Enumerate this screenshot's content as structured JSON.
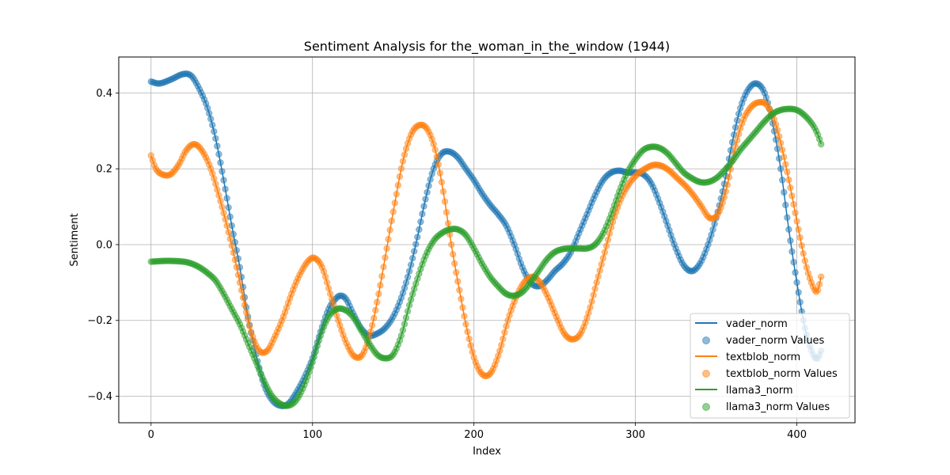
{
  "chart_data": {
    "type": "line",
    "title": "Sentiment Analysis for the_woman_in_the_window (1944)",
    "xlabel": "Index",
    "ylabel": "Sentiment",
    "xlim": [
      -20,
      436
    ],
    "ylim": [
      -0.47,
      0.495
    ],
    "xticks": [
      0,
      100,
      200,
      300,
      400
    ],
    "yticks": [
      -0.4,
      -0.2,
      0.0,
      0.2,
      0.4
    ],
    "ytick_labels": [
      "−0.4",
      "−0.2",
      "0.0",
      "0.2",
      "0.4"
    ],
    "grid": true,
    "legend_position": "lower-right",
    "legend_entries": [
      "vader_norm",
      "vader_norm Values",
      "textblob_norm",
      "textblob_norm Values",
      "llama3_norm",
      "llama3_norm Values"
    ],
    "x_max": 415,
    "series": [
      {
        "name": "vader_norm",
        "points_name": "vader_norm Values",
        "color": "#1f77b4",
        "keypoints": [
          [
            0,
            0.43
          ],
          [
            5,
            0.425
          ],
          [
            12,
            0.435
          ],
          [
            20,
            0.45
          ],
          [
            25,
            0.445
          ],
          [
            30,
            0.41
          ],
          [
            35,
            0.36
          ],
          [
            40,
            0.28
          ],
          [
            45,
            0.17
          ],
          [
            50,
            0.05
          ],
          [
            55,
            -0.06
          ],
          [
            60,
            -0.19
          ],
          [
            65,
            -0.29
          ],
          [
            70,
            -0.37
          ],
          [
            75,
            -0.41
          ],
          [
            80,
            -0.425
          ],
          [
            85,
            -0.42
          ],
          [
            90,
            -0.39
          ],
          [
            95,
            -0.35
          ],
          [
            100,
            -0.3
          ],
          [
            105,
            -0.23
          ],
          [
            110,
            -0.17
          ],
          [
            115,
            -0.14
          ],
          [
            118,
            -0.135
          ],
          [
            121,
            -0.145
          ],
          [
            125,
            -0.18
          ],
          [
            130,
            -0.22
          ],
          [
            135,
            -0.24
          ],
          [
            140,
            -0.235
          ],
          [
            145,
            -0.22
          ],
          [
            150,
            -0.19
          ],
          [
            155,
            -0.14
          ],
          [
            160,
            -0.07
          ],
          [
            165,
            0.02
          ],
          [
            170,
            0.12
          ],
          [
            175,
            0.2
          ],
          [
            180,
            0.24
          ],
          [
            185,
            0.245
          ],
          [
            190,
            0.23
          ],
          [
            195,
            0.2
          ],
          [
            200,
            0.17
          ],
          [
            205,
            0.135
          ],
          [
            210,
            0.105
          ],
          [
            215,
            0.08
          ],
          [
            220,
            0.05
          ],
          [
            225,
            0.0
          ],
          [
            230,
            -0.06
          ],
          [
            235,
            -0.1
          ],
          [
            240,
            -0.11
          ],
          [
            245,
            -0.095
          ],
          [
            250,
            -0.07
          ],
          [
            255,
            -0.05
          ],
          [
            260,
            -0.02
          ],
          [
            265,
            0.03
          ],
          [
            270,
            0.08
          ],
          [
            275,
            0.13
          ],
          [
            280,
            0.17
          ],
          [
            285,
            0.19
          ],
          [
            290,
            0.195
          ],
          [
            295,
            0.19
          ],
          [
            300,
            0.19
          ],
          [
            305,
            0.185
          ],
          [
            310,
            0.16
          ],
          [
            315,
            0.11
          ],
          [
            320,
            0.05
          ],
          [
            325,
            -0.01
          ],
          [
            330,
            -0.055
          ],
          [
            335,
            -0.07
          ],
          [
            340,
            -0.05
          ],
          [
            345,
            0.0
          ],
          [
            350,
            0.07
          ],
          [
            355,
            0.16
          ],
          [
            360,
            0.27
          ],
          [
            365,
            0.36
          ],
          [
            370,
            0.41
          ],
          [
            375,
            0.425
          ],
          [
            380,
            0.4
          ],
          [
            385,
            0.32
          ],
          [
            390,
            0.2
          ],
          [
            395,
            0.04
          ],
          [
            400,
            -0.1
          ],
          [
            405,
            -0.22
          ],
          [
            410,
            -0.29
          ],
          [
            413,
            -0.3
          ],
          [
            415,
            -0.28
          ]
        ]
      },
      {
        "name": "textblob_norm",
        "points_name": "textblob_norm Values",
        "color": "#ff7f0e",
        "keypoints": [
          [
            0,
            0.235
          ],
          [
            3,
            0.2
          ],
          [
            7,
            0.185
          ],
          [
            12,
            0.185
          ],
          [
            17,
            0.21
          ],
          [
            22,
            0.25
          ],
          [
            27,
            0.265
          ],
          [
            32,
            0.245
          ],
          [
            37,
            0.2
          ],
          [
            42,
            0.13
          ],
          [
            47,
            0.05
          ],
          [
            52,
            -0.04
          ],
          [
            57,
            -0.14
          ],
          [
            62,
            -0.23
          ],
          [
            67,
            -0.28
          ],
          [
            72,
            -0.28
          ],
          [
            77,
            -0.24
          ],
          [
            82,
            -0.19
          ],
          [
            87,
            -0.13
          ],
          [
            92,
            -0.08
          ],
          [
            97,
            -0.045
          ],
          [
            101,
            -0.035
          ],
          [
            106,
            -0.06
          ],
          [
            111,
            -0.13
          ],
          [
            116,
            -0.2
          ],
          [
            121,
            -0.26
          ],
          [
            126,
            -0.295
          ],
          [
            131,
            -0.29
          ],
          [
            136,
            -0.23
          ],
          [
            141,
            -0.13
          ],
          [
            146,
            -0.01
          ],
          [
            151,
            0.11
          ],
          [
            156,
            0.22
          ],
          [
            161,
            0.29
          ],
          [
            166,
            0.315
          ],
          [
            171,
            0.305
          ],
          [
            176,
            0.25
          ],
          [
            181,
            0.14
          ],
          [
            186,
            0.0
          ],
          [
            191,
            -0.12
          ],
          [
            196,
            -0.23
          ],
          [
            201,
            -0.31
          ],
          [
            206,
            -0.345
          ],
          [
            211,
            -0.335
          ],
          [
            216,
            -0.28
          ],
          [
            221,
            -0.2
          ],
          [
            226,
            -0.14
          ],
          [
            231,
            -0.1
          ],
          [
            236,
            -0.085
          ],
          [
            241,
            -0.1
          ],
          [
            246,
            -0.14
          ],
          [
            251,
            -0.19
          ],
          [
            256,
            -0.235
          ],
          [
            261,
            -0.25
          ],
          [
            266,
            -0.235
          ],
          [
            271,
            -0.18
          ],
          [
            276,
            -0.1
          ],
          [
            281,
            -0.02
          ],
          [
            286,
            0.06
          ],
          [
            291,
            0.12
          ],
          [
            296,
            0.16
          ],
          [
            301,
            0.185
          ],
          [
            306,
            0.2
          ],
          [
            311,
            0.21
          ],
          [
            316,
            0.208
          ],
          [
            321,
            0.195
          ],
          [
            326,
            0.175
          ],
          [
            331,
            0.155
          ],
          [
            336,
            0.13
          ],
          [
            341,
            0.1
          ],
          [
            346,
            0.07
          ],
          [
            351,
            0.08
          ],
          [
            356,
            0.14
          ],
          [
            361,
            0.24
          ],
          [
            366,
            0.32
          ],
          [
            371,
            0.36
          ],
          [
            376,
            0.375
          ],
          [
            381,
            0.37
          ],
          [
            386,
            0.33
          ],
          [
            391,
            0.25
          ],
          [
            396,
            0.15
          ],
          [
            401,
            0.04
          ],
          [
            406,
            -0.06
          ],
          [
            411,
            -0.12
          ],
          [
            413,
            -0.12
          ],
          [
            415,
            -0.085
          ]
        ]
      },
      {
        "name": "llama3_norm",
        "points_name": "llama3_norm Values",
        "color": "#2ca02c",
        "keypoints": [
          [
            0,
            -0.045
          ],
          [
            10,
            -0.043
          ],
          [
            20,
            -0.045
          ],
          [
            25,
            -0.05
          ],
          [
            30,
            -0.06
          ],
          [
            35,
            -0.075
          ],
          [
            40,
            -0.095
          ],
          [
            45,
            -0.13
          ],
          [
            50,
            -0.17
          ],
          [
            55,
            -0.21
          ],
          [
            60,
            -0.26
          ],
          [
            65,
            -0.31
          ],
          [
            70,
            -0.36
          ],
          [
            75,
            -0.4
          ],
          [
            80,
            -0.42
          ],
          [
            85,
            -0.425
          ],
          [
            90,
            -0.41
          ],
          [
            95,
            -0.37
          ],
          [
            100,
            -0.31
          ],
          [
            105,
            -0.24
          ],
          [
            110,
            -0.19
          ],
          [
            115,
            -0.17
          ],
          [
            120,
            -0.172
          ],
          [
            125,
            -0.19
          ],
          [
            130,
            -0.225
          ],
          [
            135,
            -0.26
          ],
          [
            140,
            -0.29
          ],
          [
            145,
            -0.3
          ],
          [
            150,
            -0.29
          ],
          [
            155,
            -0.24
          ],
          [
            160,
            -0.16
          ],
          [
            165,
            -0.09
          ],
          [
            170,
            -0.03
          ],
          [
            175,
            0.01
          ],
          [
            180,
            0.03
          ],
          [
            185,
            0.04
          ],
          [
            190,
            0.04
          ],
          [
            195,
            0.025
          ],
          [
            200,
            -0.01
          ],
          [
            205,
            -0.05
          ],
          [
            210,
            -0.085
          ],
          [
            215,
            -0.11
          ],
          [
            220,
            -0.13
          ],
          [
            225,
            -0.135
          ],
          [
            230,
            -0.125
          ],
          [
            235,
            -0.1
          ],
          [
            240,
            -0.07
          ],
          [
            245,
            -0.04
          ],
          [
            250,
            -0.02
          ],
          [
            255,
            -0.012
          ],
          [
            260,
            -0.01
          ],
          [
            265,
            -0.01
          ],
          [
            270,
            -0.01
          ],
          [
            275,
            0.0
          ],
          [
            280,
            0.03
          ],
          [
            285,
            0.08
          ],
          [
            290,
            0.14
          ],
          [
            295,
            0.19
          ],
          [
            300,
            0.225
          ],
          [
            305,
            0.25
          ],
          [
            310,
            0.258
          ],
          [
            315,
            0.255
          ],
          [
            320,
            0.24
          ],
          [
            325,
            0.215
          ],
          [
            330,
            0.19
          ],
          [
            335,
            0.175
          ],
          [
            340,
            0.165
          ],
          [
            345,
            0.165
          ],
          [
            350,
            0.175
          ],
          [
            355,
            0.195
          ],
          [
            360,
            0.22
          ],
          [
            365,
            0.25
          ],
          [
            370,
            0.275
          ],
          [
            375,
            0.3
          ],
          [
            380,
            0.325
          ],
          [
            385,
            0.345
          ],
          [
            390,
            0.355
          ],
          [
            395,
            0.358
          ],
          [
            400,
            0.355
          ],
          [
            405,
            0.34
          ],
          [
            410,
            0.315
          ],
          [
            413,
            0.29
          ],
          [
            415,
            0.265
          ]
        ]
      }
    ]
  }
}
